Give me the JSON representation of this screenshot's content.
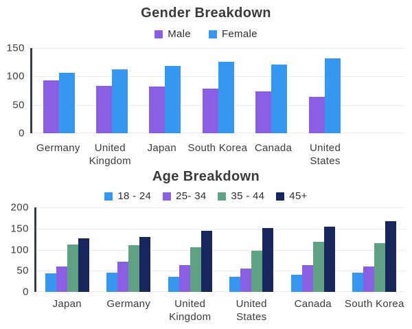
{
  "page": {
    "background": "#ffffff"
  },
  "colors": {
    "male_purple": "#8a5fe3",
    "female_blue": "#3697f0",
    "green": "#5fa183",
    "navy": "#18265e",
    "axis_line": "#3a3a4d",
    "gridline": "#ebebf0",
    "text": "#3b3b3b"
  },
  "chart_data": [
    {
      "type": "bar",
      "title": "Gender Breakdown",
      "categories": [
        "Germany",
        "United Kingdom",
        "Japan",
        "South Korea",
        "Canada",
        "United States"
      ],
      "series": [
        {
          "name": "Male",
          "color": "#8a5fe3",
          "values": [
            93,
            84,
            82,
            79,
            74,
            64
          ]
        },
        {
          "name": "Female",
          "color": "#3697f0",
          "values": [
            106,
            113,
            118,
            126,
            121,
            132
          ]
        }
      ],
      "xlabel": "",
      "ylabel": "",
      "ylim": [
        0,
        150
      ],
      "yticks": [
        0,
        50,
        100,
        150
      ],
      "grid": true,
      "legend_position": "top"
    },
    {
      "type": "bar",
      "title": "Age Breakdown",
      "categories": [
        "Japan",
        "Germany",
        "United Kingdom",
        "United States",
        "Canada",
        "South Korea"
      ],
      "series": [
        {
          "name": "18 - 24",
          "color": "#3697f0",
          "values": [
            44,
            46,
            35,
            36,
            40,
            46
          ]
        },
        {
          "name": "25- 34",
          "color": "#8a5fe3",
          "values": [
            60,
            71,
            63,
            56,
            64,
            60
          ]
        },
        {
          "name": "35 - 44",
          "color": "#5fa183",
          "values": [
            113,
            110,
            106,
            98,
            118,
            115
          ]
        },
        {
          "name": "45+",
          "color": "#18265e",
          "values": [
            127,
            130,
            144,
            152,
            154,
            167
          ]
        }
      ],
      "xlabel": "",
      "ylabel": "",
      "ylim": [
        0,
        200
      ],
      "yticks": [
        0,
        50,
        100,
        150,
        200
      ],
      "grid": true,
      "legend_position": "top"
    }
  ]
}
